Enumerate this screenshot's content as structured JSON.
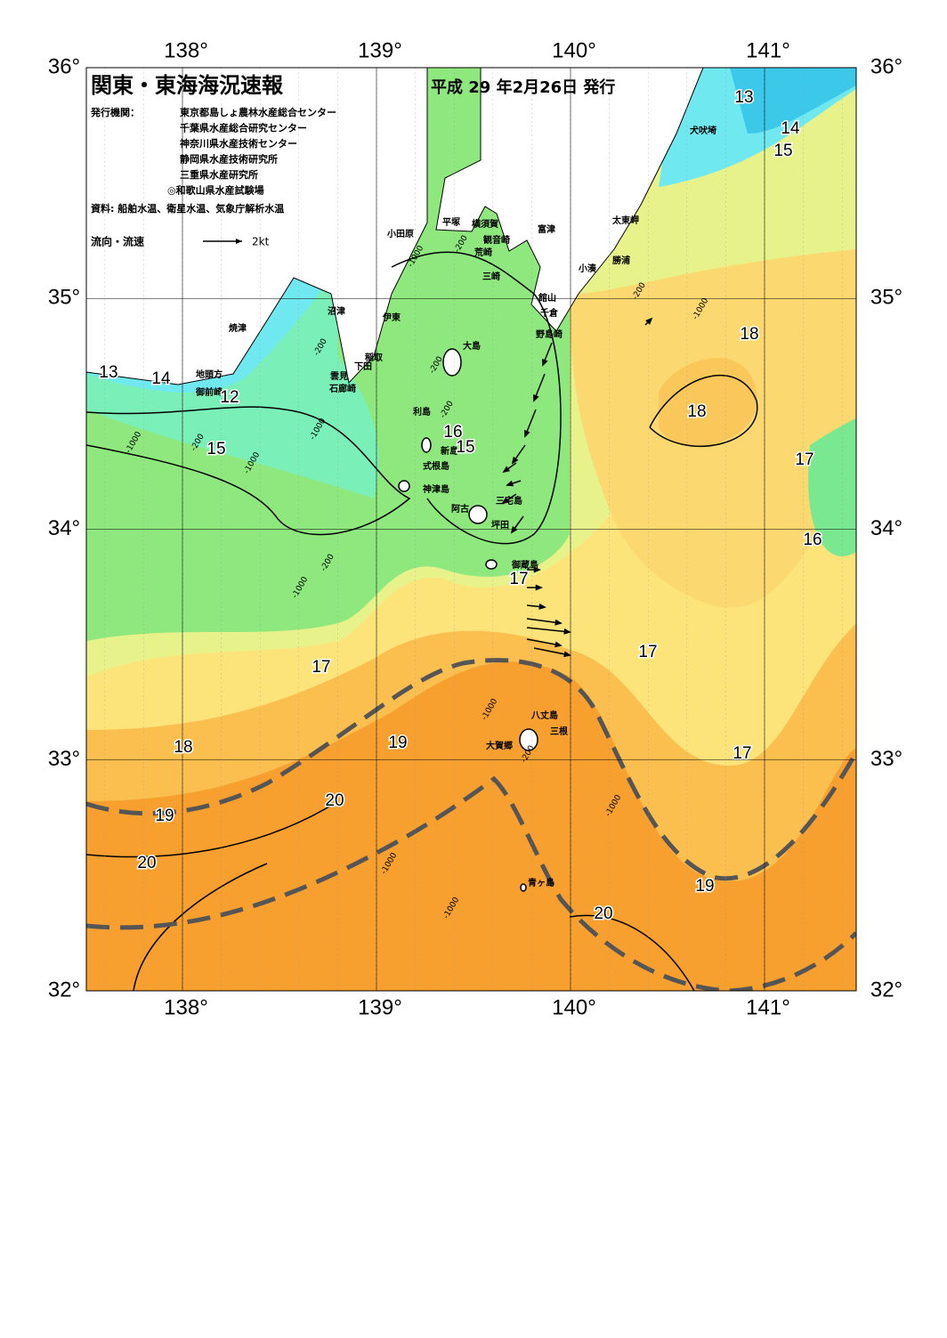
{
  "header": {
    "title": "関東・東海海況速報",
    "date": "平成 29 年2月26日 発行",
    "publisher_label": "発行機関：",
    "publishers": [
      "東京都島しょ農林水産総合センター",
      "千葉県水産総合研究センター",
      "神奈川県水産技術センター",
      "静岡県水産技術研究所",
      "三重県水産研究所",
      "◎和歌山県水産試験場"
    ],
    "sources": "資料: 船舶水温、衛星水温、気象庁解析水温",
    "legend_label": "流向・流速",
    "legend_speed": "2kt"
  },
  "axes": {
    "lon_ticks": [
      {
        "value": 138,
        "label": "138°"
      },
      {
        "value": 139,
        "label": "139°"
      },
      {
        "value": 140,
        "label": "140°"
      },
      {
        "value": 141,
        "label": "141°"
      }
    ],
    "lat_ticks": [
      {
        "value": 36,
        "label": "36°"
      },
      {
        "value": 35,
        "label": "35°"
      },
      {
        "value": 34,
        "label": "34°"
      },
      {
        "value": 33,
        "label": "33°"
      },
      {
        "value": 32,
        "label": "32°"
      }
    ]
  },
  "places": [
    "小田原",
    "平塚",
    "横須賀",
    "観音崎",
    "荒崎",
    "三崎",
    "富津",
    "太東岬",
    "勝浦",
    "小湊",
    "館山",
    "千倉",
    "野島崎",
    "犬吠埼",
    "沼津",
    "伊東",
    "焼津",
    "稲取",
    "下田",
    "雲見",
    "石廊崎",
    "地頭方",
    "御前崎",
    "大島",
    "利島",
    "新島",
    "式根島",
    "神津島",
    "三宅島",
    "阿古",
    "坪田",
    "御蔵島",
    "八丈島",
    "三根",
    "大賀郷",
    "青ヶ島"
  ],
  "isotherm_labels": [
    13,
    14,
    15,
    13,
    14,
    12,
    15,
    16,
    15,
    18,
    18,
    17,
    16,
    17,
    17,
    17,
    19,
    18,
    17,
    20,
    19,
    20,
    19,
    20
  ],
  "depth_labels": [
    -200,
    -200,
    -200,
    -200,
    -200,
    -200,
    -200,
    -200,
    -1000,
    -1000,
    -1000,
    -1000,
    -1000,
    -1000,
    -1000,
    -1000,
    -1000,
    -1000
  ]
}
